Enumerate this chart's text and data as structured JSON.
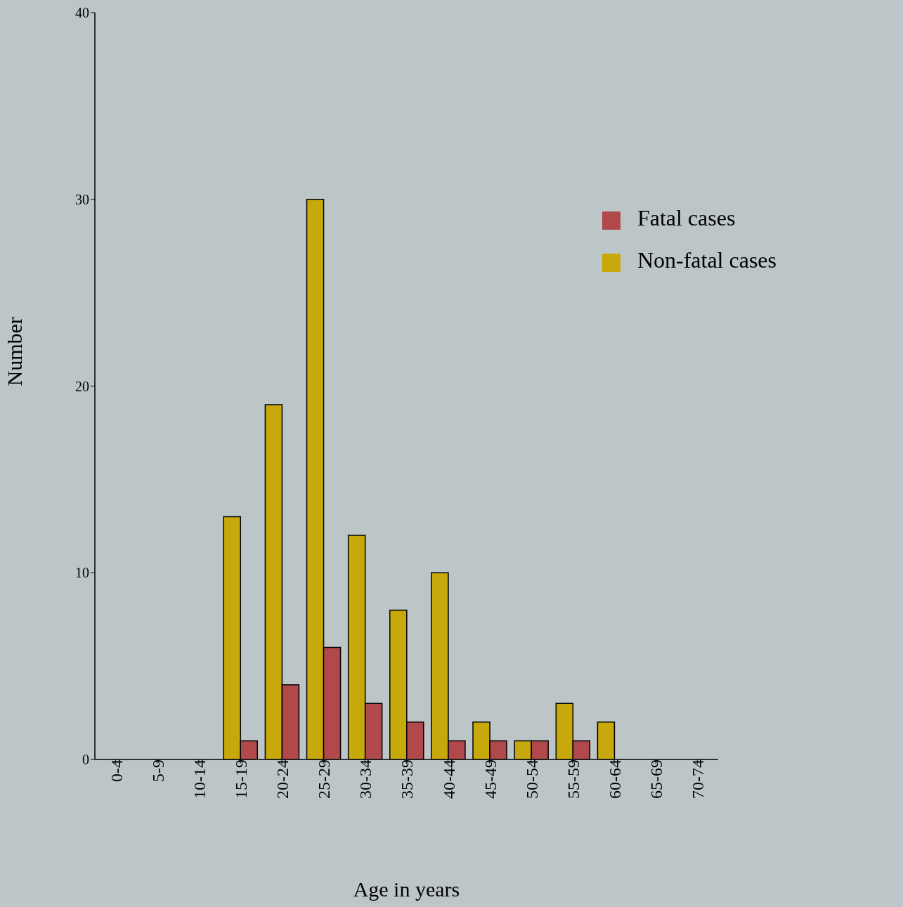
{
  "chart_data": {
    "type": "bar",
    "xlabel": "Age in years",
    "ylabel": "Number",
    "categories": [
      "0-4",
      "5-9",
      "10-14",
      "15-19",
      "20-24",
      "25-29",
      "30-34",
      "35-39",
      "40-44",
      "45-49",
      "50-54",
      "55-59",
      "60-64",
      "65-69",
      "70-74"
    ],
    "series": [
      {
        "name": "Non-fatal cases",
        "color": "#c8a90c",
        "values": [
          0,
          0,
          0,
          13,
          19,
          30,
          12,
          8,
          10,
          2,
          1,
          3,
          2,
          0,
          0
        ]
      },
      {
        "name": "Fatal cases",
        "color": "#b0484c",
        "values": [
          0,
          0,
          0,
          1,
          4,
          6,
          3,
          2,
          1,
          1,
          1,
          1,
          0,
          0,
          0
        ]
      }
    ],
    "ylim": [
      0,
      40
    ],
    "yticks": [
      0,
      10,
      20,
      30,
      40
    ],
    "grid": false,
    "legend": "top right"
  }
}
